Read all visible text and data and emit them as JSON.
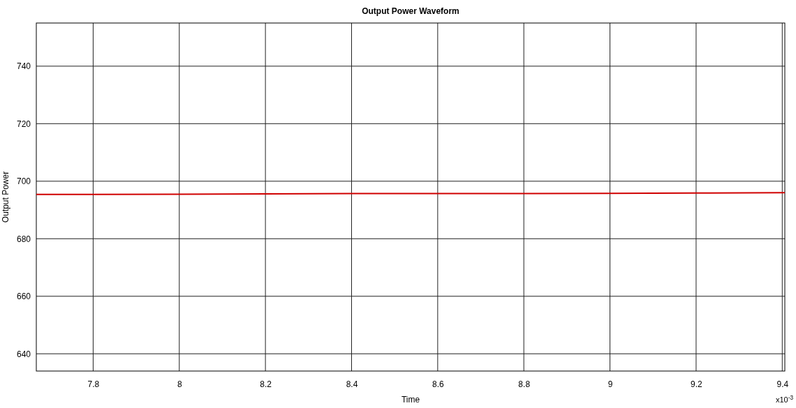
{
  "chart_data": {
    "type": "line",
    "title": "Output Power Waveform",
    "xlabel": "Time",
    "ylabel": "Output Power",
    "annotations": [
      "x10$^{-3}$"
    ],
    "xlim": [
      7.668,
      9.406
    ],
    "xticks": [
      7.8,
      8,
      8.2,
      8.4,
      8.6,
      8.8,
      9,
      9.2,
      9.4
    ],
    "ylim": [
      634,
      755
    ],
    "yticks": [
      640,
      660,
      680,
      700,
      720,
      740
    ],
    "grid": true,
    "series": [
      {
        "color": "#d00000",
        "x": [
          7.668,
          7.8,
          8.0,
          8.2,
          8.4,
          8.6,
          8.8,
          9.0,
          9.2,
          9.406
        ],
        "values": [
          695.4,
          695.4,
          695.5,
          695.6,
          695.7,
          695.7,
          695.7,
          695.8,
          695.9,
          696.0
        ]
      }
    ]
  }
}
